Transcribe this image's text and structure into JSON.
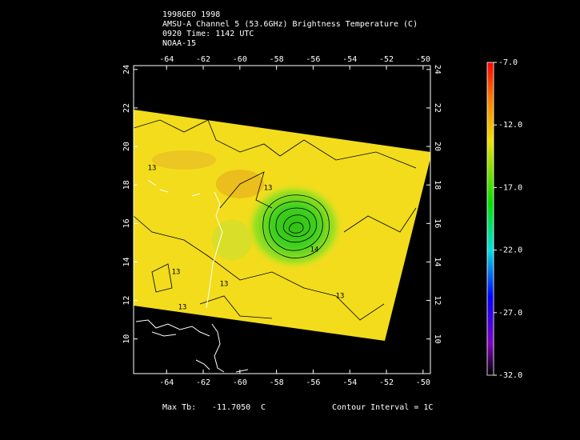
{
  "header": {
    "lines": [
      "1998GEO 1998",
      "AMSU-A Channel 5 (53.6GHz) Brightness Temperature (C)",
      "0920 Time: 1142 UTC",
      "NOAA-15"
    ]
  },
  "map": {
    "xlim": [
      -65.8,
      -49.6
    ],
    "ylim": [
      8.2,
      24.2
    ],
    "xticks": [
      -64,
      -62,
      -60,
      -58,
      -56,
      -54,
      -52,
      -50
    ],
    "yticks": [
      10,
      12,
      14,
      16,
      18,
      20,
      22,
      24
    ],
    "contour_labels": [
      "13",
      "13",
      "13",
      "13",
      "14",
      "13",
      "13"
    ]
  },
  "colorbar": {
    "clim": [
      -32,
      -7
    ],
    "ticks": [
      {
        "value": -7,
        "label": "-7.0"
      },
      {
        "value": -12,
        "label": "-12.0"
      },
      {
        "value": -17,
        "label": "-17.0"
      },
      {
        "value": -22,
        "label": "-22.0"
      },
      {
        "value": -27,
        "label": "-27.0"
      },
      {
        "value": -32,
        "label": "-32.0"
      }
    ]
  },
  "footer": {
    "max_tb_label": "Max Tb:",
    "max_tb_value": "-11.7050",
    "max_tb_unit": "C",
    "contour_interval": "Contour Interval = 1C"
  }
}
